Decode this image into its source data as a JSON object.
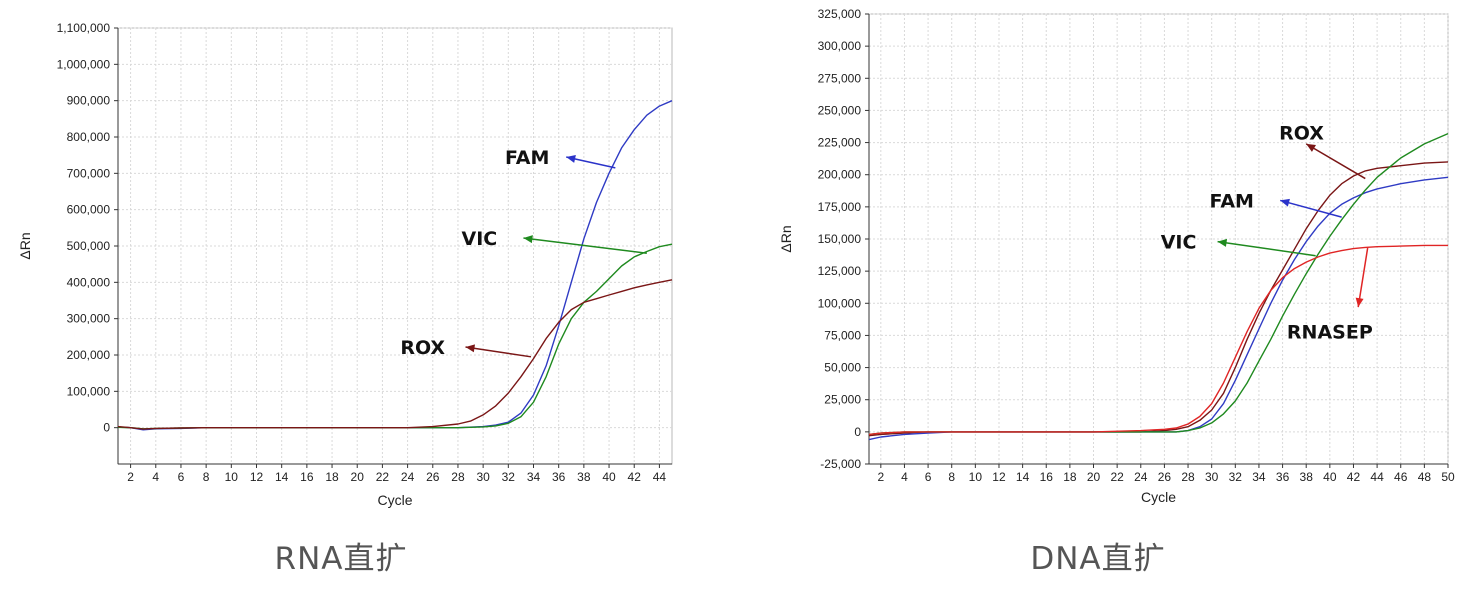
{
  "chart_data": [
    {
      "type": "line",
      "caption": "RNA直扩",
      "xlabel": "Cycle",
      "ylabel": "ΔRn",
      "xlim": [
        1,
        45
      ],
      "ylim": [
        -100000,
        1100000
      ],
      "x_ticks": [
        2,
        4,
        6,
        8,
        10,
        12,
        14,
        16,
        18,
        20,
        22,
        24,
        26,
        28,
        30,
        32,
        34,
        36,
        38,
        40,
        42,
        44
      ],
      "y_ticks": [
        0,
        100000,
        200000,
        300000,
        400000,
        500000,
        600000,
        700000,
        800000,
        900000,
        1000000,
        1100000
      ],
      "y_tick_labels": [
        "0",
        "100,000",
        "200,000",
        "300,000",
        "400,000",
        "500,000",
        "600,000",
        "700,000",
        "800,000",
        "900,000",
        "1,000,000",
        "1,100,000"
      ],
      "grid": true,
      "series": [
        {
          "name": "FAM",
          "color": "#2f3bc4",
          "x": [
            1,
            2,
            3,
            4,
            6,
            8,
            10,
            14,
            20,
            24,
            26,
            28,
            30,
            31,
            32,
            33,
            34,
            35,
            36,
            37,
            38,
            39,
            40,
            41,
            42,
            43,
            44,
            45
          ],
          "y": [
            2000,
            0,
            -6000,
            -3000,
            -2000,
            0,
            0,
            0,
            0,
            0,
            0,
            0,
            3000,
            7000,
            15000,
            40000,
            90000,
            170000,
            280000,
            400000,
            520000,
            620000,
            700000,
            770000,
            820000,
            860000,
            885000,
            900000
          ]
        },
        {
          "name": "VIC",
          "color": "#1f8a1f",
          "x": [
            1,
            2,
            3,
            4,
            6,
            8,
            10,
            14,
            20,
            24,
            26,
            28,
            30,
            31,
            32,
            33,
            34,
            35,
            36,
            37,
            38,
            39,
            40,
            41,
            42,
            43,
            44,
            45
          ],
          "y": [
            1000,
            0,
            -3000,
            -2000,
            -1000,
            0,
            0,
            0,
            0,
            0,
            0,
            0,
            2000,
            5000,
            12000,
            30000,
            70000,
            140000,
            230000,
            300000,
            345000,
            375000,
            410000,
            445000,
            470000,
            485000,
            498000,
            505000
          ]
        },
        {
          "name": "ROX",
          "color": "#7a1616",
          "x": [
            1,
            2,
            3,
            4,
            6,
            8,
            10,
            14,
            20,
            24,
            26,
            28,
            29,
            30,
            31,
            32,
            33,
            34,
            35,
            36,
            37,
            38,
            39,
            40,
            41,
            42,
            43,
            44,
            45
          ],
          "y": [
            3000,
            0,
            -4000,
            -2000,
            -1000,
            0,
            0,
            0,
            0,
            0,
            3000,
            10000,
            18000,
            35000,
            60000,
            95000,
            140000,
            190000,
            245000,
            290000,
            325000,
            345000,
            355000,
            365000,
            375000,
            385000,
            393000,
            400000,
            407000
          ]
        }
      ]
    },
    {
      "type": "line",
      "caption": "DNA直扩",
      "xlabel": "Cycle",
      "ylabel": "ΔRn",
      "xlim": [
        1,
        50
      ],
      "ylim": [
        -25000,
        325000
      ],
      "x_ticks": [
        2,
        4,
        6,
        8,
        10,
        12,
        14,
        16,
        18,
        20,
        22,
        24,
        26,
        28,
        30,
        32,
        34,
        36,
        38,
        40,
        42,
        44,
        46,
        48,
        50
      ],
      "y_ticks": [
        -25000,
        0,
        25000,
        50000,
        75000,
        100000,
        125000,
        150000,
        175000,
        200000,
        225000,
        250000,
        275000,
        300000,
        325000
      ],
      "y_tick_labels": [
        "-25,000",
        "0",
        "25,000",
        "50,000",
        "75,000",
        "100,000",
        "125,000",
        "150,000",
        "175,000",
        "200,000",
        "225,000",
        "250,000",
        "275,000",
        "300,000",
        "325,000"
      ],
      "grid": true,
      "series": [
        {
          "name": "ROX",
          "color": "#7a1616",
          "x": [
            1,
            2,
            4,
            6,
            8,
            10,
            20,
            24,
            26,
            27,
            28,
            29,
            30,
            31,
            32,
            33,
            34,
            35,
            36,
            37,
            38,
            39,
            40,
            41,
            42,
            43,
            44,
            46,
            48,
            50
          ],
          "y": [
            -3000,
            -2000,
            -1000,
            0,
            0,
            0,
            0,
            0,
            1000,
            2000,
            4000,
            9000,
            17000,
            30000,
            50000,
            72000,
            92000,
            110000,
            126000,
            142000,
            158000,
            172000,
            184000,
            193000,
            199000,
            203000,
            205000,
            207000,
            209000,
            210000
          ]
        },
        {
          "name": "FAM",
          "color": "#2f3bc4",
          "x": [
            1,
            2,
            4,
            6,
            8,
            10,
            20,
            24,
            26,
            27,
            28,
            29,
            30,
            31,
            32,
            33,
            34,
            35,
            36,
            37,
            38,
            39,
            40,
            41,
            42,
            43,
            44,
            46,
            48,
            50
          ],
          "y": [
            -6000,
            -4000,
            -2000,
            -1000,
            0,
            0,
            0,
            0,
            0,
            0,
            1000,
            4000,
            10000,
            22000,
            40000,
            60000,
            80000,
            100000,
            118000,
            134000,
            148000,
            160000,
            170000,
            177000,
            182000,
            186000,
            189000,
            193000,
            196000,
            198000
          ]
        },
        {
          "name": "VIC",
          "color": "#1f8a1f",
          "x": [
            1,
            2,
            4,
            6,
            8,
            10,
            20,
            24,
            26,
            27,
            28,
            29,
            30,
            31,
            32,
            33,
            34,
            35,
            36,
            37,
            38,
            39,
            40,
            41,
            42,
            43,
            44,
            46,
            48,
            50
          ],
          "y": [
            -2000,
            -1000,
            0,
            0,
            0,
            0,
            0,
            0,
            0,
            0,
            1000,
            3000,
            7000,
            14000,
            24000,
            38000,
            55000,
            72000,
            90000,
            107000,
            123000,
            138000,
            152000,
            165000,
            177000,
            188000,
            198000,
            213000,
            224000,
            232000
          ]
        },
        {
          "name": "RNASEP",
          "color": "#e02525",
          "x": [
            1,
            2,
            4,
            6,
            8,
            10,
            20,
            24,
            26,
            27,
            28,
            29,
            30,
            31,
            32,
            33,
            34,
            35,
            36,
            37,
            38,
            39,
            40,
            41,
            42,
            43,
            44,
            46,
            48,
            50
          ],
          "y": [
            -2000,
            -1000,
            0,
            0,
            0,
            0,
            0,
            1000,
            2000,
            3000,
            6000,
            12000,
            22000,
            38000,
            58000,
            78000,
            96000,
            110000,
            120000,
            127000,
            132000,
            136000,
            139000,
            141000,
            142500,
            143500,
            144000,
            144500,
            145000,
            145000
          ]
        }
      ]
    }
  ],
  "annotations": [
    {
      "chart": 0,
      "label": "FAM",
      "color": "#2b33c9",
      "label_x": 33.5,
      "label_y": 745000,
      "head_x": 36.6,
      "head_y": 745000,
      "tail_x": 40.5,
      "tail_y": 715000
    },
    {
      "chart": 0,
      "label": "VIC",
      "color": "#1f8a1f",
      "label_x": 29.7,
      "label_y": 522000,
      "head_x": 33.2,
      "head_y": 522000,
      "tail_x": 43.0,
      "tail_y": 480000
    },
    {
      "chart": 0,
      "label": "ROX",
      "color": "#7a1616",
      "label_x": 25.2,
      "label_y": 222000,
      "head_x": 28.6,
      "head_y": 222000,
      "tail_x": 33.8,
      "tail_y": 195000
    },
    {
      "chart": 1,
      "label": "ROX",
      "color": "#7a1616",
      "label_x": 37.6,
      "label_y": 233000,
      "head_x": 38.0,
      "head_y": 224000,
      "tail_x": 43.0,
      "tail_y": 197000
    },
    {
      "chart": 1,
      "label": "FAM",
      "color": "#2b33c9",
      "label_x": 31.7,
      "label_y": 180000,
      "head_x": 35.8,
      "head_y": 180000,
      "tail_x": 41.0,
      "tail_y": 167000
    },
    {
      "chart": 1,
      "label": "VIC",
      "color": "#1f8a1f",
      "label_x": 27.2,
      "label_y": 148000,
      "head_x": 30.5,
      "head_y": 148000,
      "tail_x": 38.8,
      "tail_y": 137000
    },
    {
      "chart": 1,
      "label": "RNASEP",
      "color": "#e02525",
      "label_x": 40.0,
      "label_y": 78000,
      "head_x": 42.4,
      "head_y": 97000,
      "tail_x": 43.2,
      "tail_y": 143000
    }
  ]
}
